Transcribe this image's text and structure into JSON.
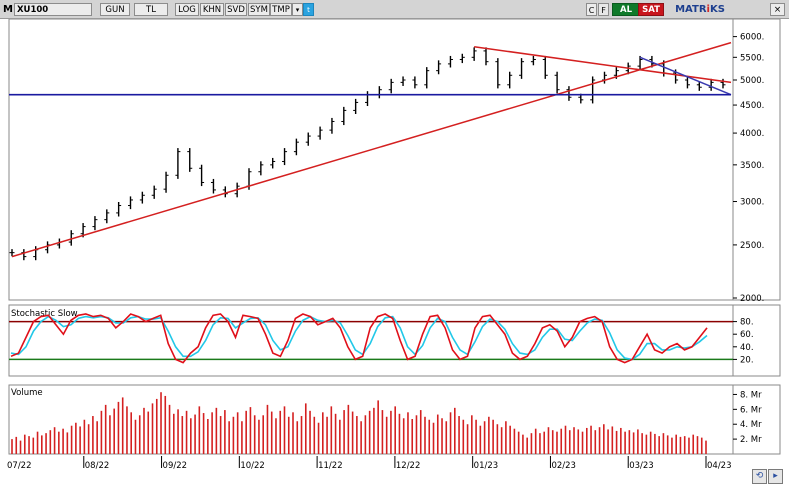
{
  "toolbar": {
    "m_label": "M",
    "symbol": "XU100",
    "period": "GUN",
    "currency": "TL",
    "log": "LOG",
    "khn": "KHN",
    "svd": "SVD",
    "sym": "SYM",
    "tmp": "TMP",
    "dropdown_icon": "▾",
    "twitter_icon": "twitter-icon",
    "c_label": "C",
    "f_label": "F",
    "buy_label": "AL",
    "sell_label": "SAT",
    "logo_a": "MATR",
    "logo_b": "i",
    "logo_c": "KS",
    "close_label": "×"
  },
  "panels": {
    "stochastic_title": "Stochastic Slow",
    "volume_title": "Volume"
  },
  "chart_data": [
    {
      "type": "ohlc",
      "title": "",
      "xlabel": "",
      "ylabel": "",
      "x_tick_labels": [
        "07/22",
        "08/22",
        "09/22",
        "10/22",
        "11/22",
        "12/22",
        "01/23",
        "02/23",
        "03/23",
        "04/23"
      ],
      "y_tick_labels": [
        "2000.",
        "2500.",
        "3000.",
        "3500.",
        "4000.",
        "4500.",
        "5000.",
        "5500.",
        "6000."
      ],
      "ylim": [
        2000,
        6300
      ],
      "y_scale": "log",
      "colors": {
        "bars": "#000000",
        "trendline": "#d42020",
        "horizontal_line": "#1a1aa0",
        "down_trend": "#3a3ab0"
      },
      "close_points": [
        [
          "07/22",
          2420
        ],
        [
          "07/22",
          2380
        ],
        [
          "07/22",
          2450
        ],
        [
          "07/22",
          2500
        ],
        [
          "07/22",
          2530
        ],
        [
          "08/22",
          2620
        ],
        [
          "08/22",
          2700
        ],
        [
          "08/22",
          2780
        ],
        [
          "08/22",
          2860
        ],
        [
          "08/22",
          2950
        ],
        [
          "08/22",
          3020
        ],
        [
          "08/22",
          3080
        ],
        [
          "08/22",
          3160
        ],
        [
          "09/22",
          3350
        ],
        [
          "09/22",
          3700
        ],
        [
          "09/22",
          3450
        ],
        [
          "09/22",
          3250
        ],
        [
          "09/22",
          3150
        ],
        [
          "09/22",
          3100
        ],
        [
          "10/22",
          3200
        ],
        [
          "10/22",
          3400
        ],
        [
          "10/22",
          3500
        ],
        [
          "10/22",
          3550
        ],
        [
          "10/22",
          3700
        ],
        [
          "10/22",
          3850
        ],
        [
          "11/22",
          3950
        ],
        [
          "11/22",
          4050
        ],
        [
          "11/22",
          4200
        ],
        [
          "11/22",
          4400
        ],
        [
          "11/22",
          4550
        ],
        [
          "11/22",
          4700
        ],
        [
          "12/22",
          4800
        ],
        [
          "12/22",
          4950
        ],
        [
          "12/22",
          5000
        ],
        [
          "12/22",
          4900
        ],
        [
          "12/22",
          5200
        ],
        [
          "12/22",
          5350
        ],
        [
          "12/22",
          5450
        ],
        [
          "01/23",
          5500
        ],
        [
          "01/23",
          5650
        ],
        [
          "01/23",
          5400
        ],
        [
          "01/23",
          4900
        ],
        [
          "01/23",
          5100
        ],
        [
          "01/23",
          5400
        ],
        [
          "01/23",
          5450
        ],
        [
          "02/23",
          5100
        ],
        [
          "02/23",
          4800
        ],
        [
          "02/23",
          4650
        ],
        [
          "02/23",
          4600
        ],
        [
          "02/23",
          5000
        ],
        [
          "02/23",
          5100
        ],
        [
          "03/23",
          5200
        ],
        [
          "03/23",
          5300
        ],
        [
          "03/23",
          5450
        ],
        [
          "03/23",
          5350
        ],
        [
          "03/23",
          5150
        ],
        [
          "03/23",
          5000
        ],
        [
          "03/23",
          4900
        ],
        [
          "04/23",
          4850
        ],
        [
          "04/23",
          4950
        ],
        [
          "04/23",
          4900
        ]
      ],
      "trendlines": [
        {
          "name": "",
          "from": [
            "07/22",
            2380
          ],
          "to": [
            "04/23",
            5850
          ]
        },
        {
          "name": "",
          "from": [
            "01/23",
            5750
          ],
          "to": [
            "04/23",
            4950
          ]
        },
        {
          "name": "",
          "from": [
            "03/23",
            5500
          ],
          "to": [
            "04/23",
            4700
          ]
        }
      ],
      "horizontal_levels": [
        4700
      ]
    },
    {
      "type": "line",
      "title": "Stochastic Slow",
      "y_tick_labels": [
        "20.",
        "40.",
        "60.",
        "80."
      ],
      "ylim": [
        0,
        100
      ],
      "reference_levels": [
        {
          "value": 80,
          "color": "#8b0000"
        },
        {
          "value": 20,
          "color": "#1a7a1a"
        }
      ],
      "series": [
        {
          "name": "",
          "color": "#e0101a",
          "values": [
            25,
            30,
            55,
            80,
            88,
            90,
            75,
            60,
            82,
            90,
            92,
            88,
            90,
            85,
            70,
            80,
            92,
            88,
            80,
            85,
            90,
            45,
            20,
            15,
            30,
            40,
            70,
            90,
            92,
            80,
            55,
            90,
            88,
            85,
            60,
            30,
            25,
            50,
            85,
            92,
            88,
            75,
            80,
            85,
            70,
            40,
            20,
            25,
            70,
            88,
            92,
            85,
            50,
            20,
            25,
            60,
            88,
            90,
            70,
            35,
            20,
            25,
            70,
            88,
            90,
            75,
            60,
            30,
            20,
            25,
            45,
            70,
            75,
            65,
            40,
            55,
            80,
            85,
            88,
            80,
            40,
            20,
            15,
            20,
            40,
            60,
            35,
            30,
            40,
            45,
            35,
            40,
            55,
            70
          ]
        },
        {
          "name": "",
          "color": "#22c8e8",
          "values": [
            30,
            28,
            40,
            65,
            80,
            88,
            82,
            72,
            75,
            85,
            88,
            86,
            88,
            86,
            78,
            78,
            86,
            88,
            84,
            84,
            86,
            65,
            40,
            25,
            25,
            32,
            50,
            75,
            86,
            85,
            70,
            78,
            85,
            86,
            75,
            50,
            35,
            40,
            65,
            82,
            88,
            82,
            80,
            82,
            78,
            58,
            35,
            28,
            45,
            72,
            86,
            88,
            70,
            40,
            28,
            42,
            70,
            85,
            80,
            55,
            35,
            28,
            48,
            72,
            84,
            80,
            68,
            45,
            30,
            28,
            35,
            55,
            68,
            68,
            52,
            50,
            65,
            78,
            84,
            82,
            62,
            35,
            22,
            20,
            28,
            45,
            45,
            35,
            35,
            40,
            38,
            40,
            48,
            58
          ]
        }
      ]
    },
    {
      "type": "bar",
      "title": "Volume",
      "y_tick_labels": [
        "2. Mr",
        "4. Mr",
        "6. Mr",
        "8. Mr"
      ],
      "y_unit": "Mr",
      "ylim": [
        0,
        9
      ],
      "colors": {
        "bars": "#d42020"
      },
      "values": [
        2.0,
        2.3,
        1.8,
        2.6,
        2.4,
        2.2,
        3.0,
        2.5,
        2.8,
        3.2,
        3.6,
        3.0,
        3.4,
        2.9,
        3.8,
        4.2,
        3.7,
        4.6,
        4.0,
        5.1,
        4.4,
        5.8,
        6.6,
        5.2,
        6.1,
        7.0,
        7.6,
        6.4,
        5.6,
        4.6,
        5.2,
        6.2,
        5.7,
        6.8,
        7.4,
        8.3,
        7.8,
        6.6,
        5.4,
        6.0,
        5.1,
        5.8,
        4.8,
        5.3,
        6.4,
        5.5,
        4.7,
        5.6,
        6.2,
        5.1,
        5.9,
        4.4,
        5.0,
        5.6,
        4.4,
        5.8,
        6.3,
        5.2,
        4.6,
        5.2,
        6.6,
        5.7,
        4.8,
        5.8,
        6.4,
        5.0,
        5.6,
        4.4,
        5.1,
        6.8,
        5.8,
        5.0,
        4.2,
        5.6,
        5.0,
        6.4,
        5.4,
        4.6,
        5.9,
        6.6,
        5.7,
        5.1,
        4.4,
        5.2,
        5.8,
        6.2,
        7.2,
        5.9,
        5.0,
        5.8,
        6.4,
        5.4,
        4.8,
        5.6,
        4.7,
        5.2,
        5.9,
        5.0,
        4.6,
        4.2,
        5.3,
        4.8,
        4.4,
        5.6,
        6.2,
        5.1,
        4.6,
        4.0,
        5.2,
        4.6,
        3.8,
        4.4,
        5.0,
        4.6,
        4.0,
        3.6,
        4.4,
        3.8,
        3.4,
        3.0,
        2.6,
        2.2,
        2.8,
        3.4,
        2.8,
        3.0,
        3.6,
        3.2,
        3.0,
        3.4,
        3.8,
        3.2,
        3.6,
        3.3,
        3.0,
        3.5,
        3.8,
        3.2,
        3.6,
        4.0,
        3.3,
        3.7,
        3.1,
        3.5,
        3.0,
        3.2,
        2.9,
        3.3,
        2.8,
        2.6,
        3.0,
        2.7,
        2.4,
        2.8,
        2.5,
        2.2,
        2.6,
        2.3,
        2.4,
        2.2,
        2.6,
        2.4,
        2.2,
        1.8
      ]
    }
  ]
}
